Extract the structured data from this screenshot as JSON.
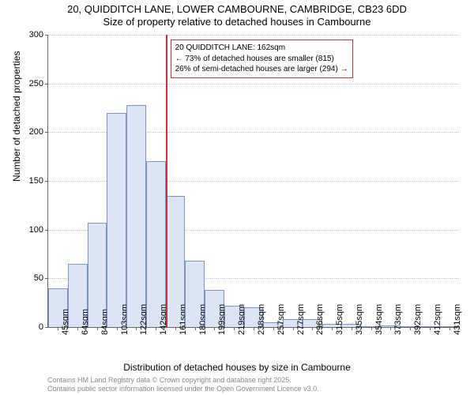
{
  "title_main": "20, QUIDDITCH LANE, LOWER CAMBOURNE, CAMBRIDGE, CB23 6DD",
  "title_sub": "Size of property relative to detached houses in Cambourne",
  "y_axis_label": "Number of detached properties",
  "x_axis_label": "Distribution of detached houses by size in Cambourne",
  "chart": {
    "type": "histogram",
    "background_color": "#ffffff",
    "grid_color": "#c0c0c0",
    "axis_color": "#666666",
    "bar_fill": "#dbe5f6",
    "bar_stroke": "#7c94c4",
    "ylim": [
      0,
      300
    ],
    "ytick_step": 50,
    "yticks": [
      0,
      50,
      100,
      150,
      200,
      250,
      300
    ],
    "categories": [
      "45sqm",
      "64sqm",
      "84sqm",
      "103sqm",
      "122sqm",
      "142sqm",
      "161sqm",
      "180sqm",
      "199sqm",
      "219sqm",
      "238sqm",
      "257sqm",
      "277sqm",
      "296sqm",
      "315sqm",
      "335sqm",
      "354sqm",
      "373sqm",
      "392sqm",
      "412sqm",
      "431sqm"
    ],
    "values": [
      40,
      65,
      107,
      220,
      228,
      170,
      135,
      68,
      38,
      22,
      20,
      5,
      8,
      8,
      3,
      3,
      0,
      2,
      0,
      0,
      1
    ],
    "bar_width_ratio": 1.0,
    "label_fontsize": 11,
    "title_fontsize": 13
  },
  "reference_line": {
    "x_category_index": 6,
    "color": "#cc3333",
    "width": 2
  },
  "annotation": {
    "border_color": "#cc3333",
    "line1": "20 QUIDDITCH LANE: 162sqm",
    "line2": "← 73% of detached houses are smaller (815)",
    "line3": "26% of semi-detached houses are larger (294) →"
  },
  "footer": {
    "line1": "Contains HM Land Registry data © Crown copyright and database right 2025.",
    "line2": "Contains public sector information licensed under the Open Government Licence v3.0."
  }
}
